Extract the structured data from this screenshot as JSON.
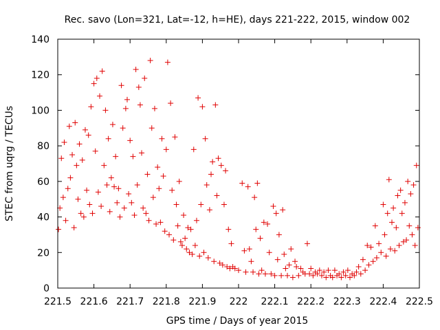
{
  "chart_data": {
    "type": "scatter",
    "title": "Rec. savo (Lon=321, Lat=-12, h=HE), days 221-222, 2015, window 002",
    "xlabel": "GPS time / Days of year 2015",
    "ylabel": "STEC from uqrg / TECUs",
    "xlim": [
      221.5,
      222.5
    ],
    "ylim": [
      0,
      140
    ],
    "x_ticks": [
      "221.5",
      "221.6",
      "221.7",
      "221.8",
      "221.9",
      "222",
      "222.1",
      "222.2",
      "222.3",
      "222.4",
      "222.5"
    ],
    "y_ticks": [
      "0",
      "20",
      "40",
      "60",
      "80",
      "100",
      "120",
      "140"
    ],
    "grid": false,
    "marker": "plus",
    "marker_color": "#e00000",
    "series": [
      {
        "name": "STEC",
        "points": [
          [
            221.502,
            33
          ],
          [
            221.506,
            45
          ],
          [
            221.51,
            73
          ],
          [
            221.515,
            51
          ],
          [
            221.518,
            82
          ],
          [
            221.522,
            38
          ],
          [
            221.528,
            56
          ],
          [
            221.532,
            91
          ],
          [
            221.535,
            62
          ],
          [
            221.54,
            75
          ],
          [
            221.545,
            34
          ],
          [
            221.548,
            93
          ],
          [
            221.552,
            69
          ],
          [
            221.556,
            50
          ],
          [
            221.56,
            81
          ],
          [
            221.564,
            42
          ],
          [
            221.568,
            72
          ],
          [
            221.572,
            40
          ],
          [
            221.576,
            89
          ],
          [
            221.58,
            55
          ],
          [
            221.585,
            86
          ],
          [
            221.588,
            47
          ],
          [
            221.592,
            102
          ],
          [
            221.596,
            42
          ],
          [
            221.6,
            115
          ],
          [
            221.604,
            77
          ],
          [
            221.608,
            118
          ],
          [
            221.612,
            54
          ],
          [
            221.616,
            108
          ],
          [
            221.62,
            46
          ],
          [
            221.623,
            122
          ],
          [
            221.628,
            69
          ],
          [
            221.632,
            100
          ],
          [
            221.636,
            58
          ],
          [
            221.64,
            84
          ],
          [
            221.644,
            43
          ],
          [
            221.648,
            62
          ],
          [
            221.652,
            92
          ],
          [
            221.656,
            57
          ],
          [
            221.66,
            74
          ],
          [
            221.664,
            48
          ],
          [
            221.668,
            56
          ],
          [
            221.672,
            40
          ],
          [
            221.676,
            114
          ],
          [
            221.68,
            90
          ],
          [
            221.684,
            45
          ],
          [
            221.688,
            101
          ],
          [
            221.692,
            106
          ],
          [
            221.696,
            53
          ],
          [
            221.7,
            83
          ],
          [
            221.704,
            48
          ],
          [
            221.708,
            74
          ],
          [
            221.712,
            41
          ],
          [
            221.716,
            123
          ],
          [
            221.72,
            58
          ],
          [
            221.724,
            113
          ],
          [
            221.728,
            103
          ],
          [
            221.732,
            76
          ],
          [
            221.736,
            45
          ],
          [
            221.74,
            118
          ],
          [
            221.744,
            42
          ],
          [
            221.748,
            64
          ],
          [
            221.752,
            38
          ],
          [
            221.756,
            128
          ],
          [
            221.76,
            90
          ],
          [
            221.764,
            51
          ],
          [
            221.768,
            101
          ],
          [
            221.772,
            36
          ],
          [
            221.776,
            68
          ],
          [
            221.78,
            56
          ],
          [
            221.784,
            37
          ],
          [
            221.788,
            84
          ],
          [
            221.792,
            63
          ],
          [
            221.796,
            32
          ],
          [
            221.8,
            78
          ],
          [
            221.804,
            127
          ],
          [
            221.808,
            30
          ],
          [
            221.812,
            104
          ],
          [
            221.816,
            55
          ],
          [
            221.82,
            27
          ],
          [
            221.824,
            85
          ],
          [
            221.828,
            47
          ],
          [
            221.832,
            35
          ],
          [
            221.836,
            60
          ],
          [
            221.84,
            26
          ],
          [
            221.844,
            24
          ],
          [
            221.848,
            41
          ],
          [
            221.852,
            28
          ],
          [
            221.856,
            22
          ],
          [
            221.86,
            34
          ],
          [
            221.864,
            20
          ],
          [
            221.868,
            33
          ],
          [
            221.872,
            19
          ],
          [
            221.876,
            78
          ],
          [
            221.88,
            24
          ],
          [
            221.884,
            38
          ],
          [
            221.888,
            107
          ],
          [
            221.892,
            18
          ],
          [
            221.896,
            47
          ],
          [
            221.9,
            102
          ],
          [
            221.904,
            20
          ],
          [
            221.908,
            84
          ],
          [
            221.912,
            58
          ],
          [
            221.916,
            17
          ],
          [
            221.92,
            44
          ],
          [
            221.924,
            64
          ],
          [
            221.928,
            71
          ],
          [
            221.932,
            15
          ],
          [
            221.936,
            103
          ],
          [
            221.94,
            52
          ],
          [
            221.944,
            73
          ],
          [
            221.948,
            14
          ],
          [
            221.952,
            69
          ],
          [
            221.956,
            13
          ],
          [
            221.96,
            47
          ],
          [
            221.964,
            66
          ],
          [
            221.968,
            12
          ],
          [
            221.972,
            33
          ],
          [
            221.976,
            11
          ],
          [
            221.98,
            25
          ],
          [
            221.984,
            12
          ],
          [
            221.99,
            11
          ],
          [
            222.0,
            10
          ],
          [
            222.01,
            59
          ],
          [
            222.016,
            21
          ],
          [
            222.02,
            9
          ],
          [
            222.026,
            57
          ],
          [
            222.03,
            22
          ],
          [
            222.035,
            15
          ],
          [
            222.04,
            9
          ],
          [
            222.044,
            51
          ],
          [
            222.048,
            33
          ],
          [
            222.052,
            59
          ],
          [
            222.056,
            8
          ],
          [
            222.06,
            28
          ],
          [
            222.064,
            10
          ],
          [
            222.07,
            37
          ],
          [
            222.074,
            8
          ],
          [
            222.08,
            36
          ],
          [
            222.085,
            20
          ],
          [
            222.09,
            8
          ],
          [
            222.096,
            46
          ],
          [
            222.1,
            7
          ],
          [
            222.104,
            42
          ],
          [
            222.108,
            16
          ],
          [
            222.112,
            30
          ],
          [
            222.118,
            7
          ],
          [
            222.122,
            44
          ],
          [
            222.126,
            19
          ],
          [
            222.13,
            11
          ],
          [
            222.135,
            7
          ],
          [
            222.14,
            13
          ],
          [
            222.145,
            22
          ],
          [
            222.15,
            6
          ],
          [
            222.156,
            15
          ],
          [
            222.16,
            12
          ],
          [
            222.166,
            7
          ],
          [
            222.172,
            11
          ],
          [
            222.178,
            9
          ],
          [
            222.184,
            8
          ],
          [
            222.19,
            25
          ],
          [
            222.196,
            8
          ],
          [
            222.2,
            11
          ],
          [
            222.206,
            7
          ],
          [
            222.212,
            9
          ],
          [
            222.218,
            8
          ],
          [
            222.224,
            10
          ],
          [
            222.23,
            7
          ],
          [
            222.236,
            9
          ],
          [
            222.242,
            6
          ],
          [
            222.248,
            10
          ],
          [
            222.254,
            7
          ],
          [
            222.26,
            6
          ],
          [
            222.266,
            10
          ],
          [
            222.272,
            7
          ],
          [
            222.278,
            8
          ],
          [
            222.284,
            6
          ],
          [
            222.29,
            9
          ],
          [
            222.296,
            7
          ],
          [
            222.302,
            10
          ],
          [
            222.308,
            6
          ],
          [
            222.314,
            8
          ],
          [
            222.32,
            7
          ],
          [
            222.326,
            9
          ],
          [
            222.332,
            12
          ],
          [
            222.338,
            8
          ],
          [
            222.344,
            16
          ],
          [
            222.35,
            10
          ],
          [
            222.356,
            24
          ],
          [
            222.36,
            13
          ],
          [
            222.366,
            23
          ],
          [
            222.372,
            15
          ],
          [
            222.378,
            35
          ],
          [
            222.382,
            17
          ],
          [
            222.388,
            25
          ],
          [
            222.394,
            20
          ],
          [
            222.4,
            47
          ],
          [
            222.404,
            30
          ],
          [
            222.408,
            18
          ],
          [
            222.412,
            42
          ],
          [
            222.416,
            61
          ],
          [
            222.42,
            22
          ],
          [
            222.424,
            37
          ],
          [
            222.428,
            45
          ],
          [
            222.432,
            21
          ],
          [
            222.436,
            34
          ],
          [
            222.44,
            52
          ],
          [
            222.444,
            24
          ],
          [
            222.448,
            55
          ],
          [
            222.452,
            42
          ],
          [
            222.456,
            26
          ],
          [
            222.46,
            48
          ],
          [
            222.464,
            27
          ],
          [
            222.468,
            60
          ],
          [
            222.472,
            35
          ],
          [
            222.476,
            53
          ],
          [
            222.48,
            30
          ],
          [
            222.484,
            58
          ],
          [
            222.488,
            24
          ],
          [
            222.492,
            69
          ],
          [
            222.496,
            34
          ]
        ]
      }
    ]
  }
}
